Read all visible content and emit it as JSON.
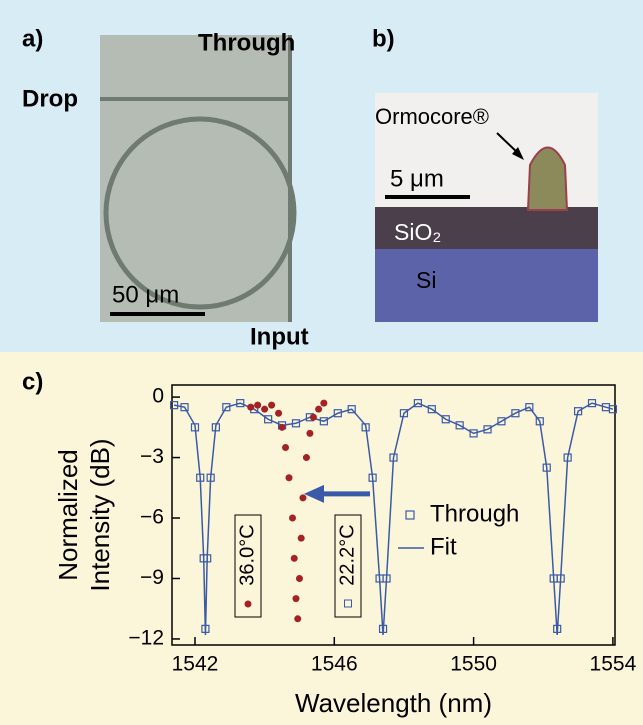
{
  "panels": {
    "a": {
      "label": "a)",
      "through": "Through",
      "drop": "Drop",
      "input": "Input",
      "scale": "50 μm"
    },
    "b": {
      "label": "b)",
      "material": "Ormocore®",
      "scale": "5 μm",
      "layer1": "SiO₂",
      "layer2": "Si"
    }
  },
  "chart_data": {
    "type": "scatter",
    "panel_label": "c)",
    "xlabel": "Wavelength (nm)",
    "ylabel": [
      "Normalized",
      "Intensity (dB)"
    ],
    "xlim": [
      1541.34,
      1554.06
    ],
    "xticks": [
      1542,
      1546,
      1550,
      1554
    ],
    "ylim": [
      -12.3,
      0.6
    ],
    "yticks": [
      0,
      {
        "value": -3,
        "label": "−3"
      },
      {
        "value": -6,
        "label": "−6"
      },
      {
        "value": -9,
        "label": "−9"
      },
      {
        "value": -12,
        "label": "−12"
      }
    ],
    "legend": "right",
    "annotations": [
      "36.0°C",
      "22.2°C"
    ],
    "series": [
      {
        "name": "Through",
        "color": "#3a5aa8",
        "marker": "square",
        "x": [
          1541.4,
          1541.7,
          1542.0,
          1542.15,
          1542.25,
          1542.3,
          1542.35,
          1542.45,
          1542.6,
          1542.9,
          1543.3,
          1543.7,
          1544.1,
          1544.5,
          1544.9,
          1545.3,
          1545.7,
          1546.1,
          1546.5,
          1546.9,
          1547.1,
          1547.3,
          1547.4,
          1547.5,
          1547.7,
          1548.0,
          1548.4,
          1548.8,
          1549.2,
          1549.6,
          1550.0,
          1550.4,
          1550.8,
          1551.2,
          1551.6,
          1551.9,
          1552.1,
          1552.3,
          1552.4,
          1552.5,
          1552.7,
          1553.0,
          1553.4,
          1553.8,
          1554.0
        ],
        "values": [
          -0.4,
          -0.5,
          -1.5,
          -4,
          -8,
          -11.5,
          -8,
          -4,
          -1.5,
          -0.5,
          -0.3,
          -0.6,
          -1.1,
          -1.4,
          -1.3,
          -1.0,
          -1.2,
          -0.8,
          -0.6,
          -1.5,
          -4,
          -9,
          -11.5,
          -9,
          -3,
          -0.8,
          -0.3,
          -0.6,
          -1.1,
          -1.4,
          -1.8,
          -1.6,
          -1.2,
          -0.8,
          -0.5,
          -1.2,
          -3.5,
          -9,
          -11.5,
          -9,
          -3,
          -0.7,
          -0.3,
          -0.5,
          -0.6
        ]
      },
      {
        "name": "Fit",
        "color": "#3a5aa8",
        "marker": "line",
        "x": [
          1541.4,
          1541.7,
          1542.0,
          1542.15,
          1542.25,
          1542.3,
          1542.35,
          1542.45,
          1542.6,
          1542.9,
          1543.3,
          1543.7,
          1544.1,
          1544.5,
          1544.9,
          1545.3,
          1545.7,
          1546.1,
          1546.5,
          1546.9,
          1547.1,
          1547.3,
          1547.4,
          1547.5,
          1547.7,
          1548.0,
          1548.4,
          1548.8,
          1549.2,
          1549.6,
          1550.0,
          1550.4,
          1550.8,
          1551.2,
          1551.6,
          1551.9,
          1552.1,
          1552.3,
          1552.4,
          1552.5,
          1552.7,
          1553.0,
          1553.4,
          1553.8,
          1554.0
        ],
        "values": [
          -0.4,
          -0.5,
          -1.4,
          -4,
          -8,
          -11.8,
          -8,
          -4,
          -1.4,
          -0.5,
          -0.3,
          -0.6,
          -1.1,
          -1.4,
          -1.3,
          -1.0,
          -1.2,
          -0.8,
          -0.6,
          -1.4,
          -4,
          -9,
          -11.8,
          -9,
          -3,
          -0.8,
          -0.3,
          -0.6,
          -1.1,
          -1.4,
          -1.8,
          -1.6,
          -1.2,
          -0.8,
          -0.5,
          -1.2,
          -3.5,
          -9,
          -11.8,
          -9,
          -3,
          -0.7,
          -0.3,
          -0.5,
          -0.6
        ]
      },
      {
        "color": "#a52224",
        "marker": "circle",
        "x": [
          1543.6,
          1543.8,
          1544.0,
          1544.2,
          1544.4,
          1544.5,
          1544.6,
          1544.7,
          1544.8,
          1544.85,
          1544.9,
          1544.95,
          1545.0,
          1545.05,
          1545.1,
          1545.2,
          1545.3,
          1545.4,
          1545.55,
          1545.7
        ],
        "values": [
          -0.5,
          -0.4,
          -0.6,
          -0.4,
          -0.8,
          -1.5,
          -2.5,
          -4,
          -6,
          -8,
          -10,
          -11,
          -9,
          -7,
          -5,
          -3,
          -1.8,
          -1.0,
          -0.6,
          -0.3
        ]
      }
    ]
  }
}
